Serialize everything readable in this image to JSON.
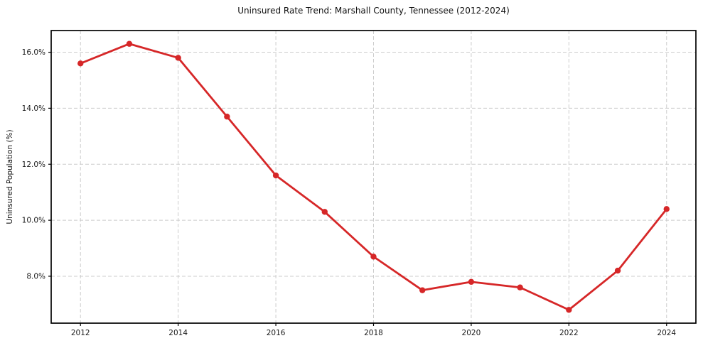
{
  "chart_data": {
    "type": "line",
    "title": "Uninsured Rate Trend: Marshall County, Tennessee (2012-2024)",
    "xlabel": "",
    "ylabel": "Uninsured Population (%)",
    "x": [
      2012,
      2013,
      2014,
      2015,
      2016,
      2017,
      2018,
      2019,
      2020,
      2021,
      2022,
      2023,
      2024
    ],
    "values": [
      15.6,
      16.3,
      15.8,
      13.7,
      11.6,
      10.3,
      8.7,
      7.5,
      7.8,
      7.6,
      6.8,
      8.2,
      10.4
    ],
    "xticks": {
      "values": [
        2012,
        2014,
        2016,
        2018,
        2020,
        2022,
        2024
      ],
      "labels": [
        "2012",
        "2014",
        "2016",
        "2018",
        "2020",
        "2022",
        "2024"
      ]
    },
    "yticks": {
      "values": [
        8,
        10,
        12,
        14,
        16
      ],
      "labels": [
        "8.0%",
        "10.0%",
        "12.0%",
        "14.0%",
        "16.0%"
      ]
    },
    "xlim": [
      2011.4,
      2024.6
    ],
    "ylim": [
      6.325,
      16.775
    ],
    "grid": true,
    "grid_style": "dashed",
    "legend": "none",
    "marker": "circle",
    "colors": {
      "line": "#d62728",
      "marker": "#d62728",
      "grid": "#cccccc",
      "spine": "#000000",
      "text": "#1a1a1a",
      "background": "#ffffff"
    }
  }
}
